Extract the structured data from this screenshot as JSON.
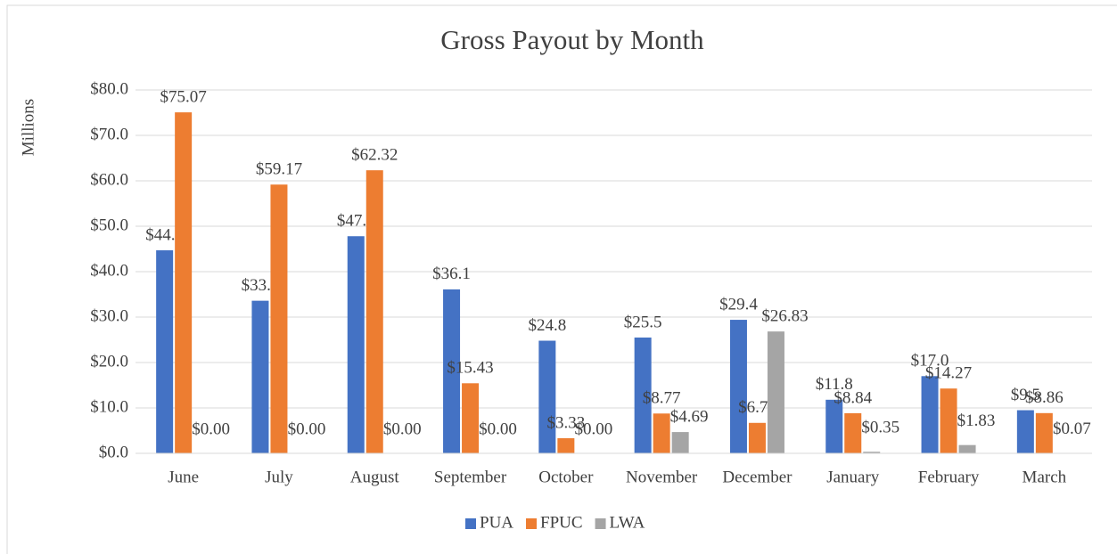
{
  "chart_data": {
    "type": "bar",
    "title": "Gross Payout by Month",
    "y_label": "Millions",
    "categories": [
      "June",
      "July",
      "August",
      "September",
      "October",
      "November",
      "December",
      "January",
      "February",
      "March"
    ],
    "series": [
      {
        "name": "PUA",
        "color": "#4472c4",
        "values": [
          44.7,
          33.6,
          47.8,
          36.1,
          24.8,
          25.5,
          29.4,
          11.8,
          17.0,
          9.5
        ],
        "value_labels": [
          "$44.7",
          "$33.6",
          "$47.8",
          "$36.1",
          "$24.8",
          "$25.5",
          "$29.4",
          "$11.8",
          "$17.0",
          "$9.5"
        ]
      },
      {
        "name": "FPUC",
        "color": "#ed7d31",
        "values": [
          75.07,
          59.17,
          62.32,
          15.43,
          3.33,
          8.77,
          6.71,
          8.84,
          14.27,
          8.86
        ],
        "value_labels": [
          "$75.07",
          "$59.17",
          "$62.32",
          "$15.43",
          "$3.33",
          "$8.77",
          "$6.71",
          "$8.84",
          "$14.27",
          "$8.86"
        ]
      },
      {
        "name": "LWA",
        "color": "#a5a5a5",
        "values": [
          0,
          0,
          0,
          0,
          0,
          4.69,
          26.83,
          0.35,
          1.83,
          0.07
        ],
        "value_labels": [
          "$0.00",
          "$0.00",
          "$0.00",
          "$0.00",
          "$0.00",
          "$4.69",
          "$26.83",
          "$0.35",
          "$1.83",
          "$0.07"
        ]
      }
    ],
    "ylim": [
      0,
      80
    ],
    "yticks": [
      {
        "value": 0,
        "label": "$0.0"
      },
      {
        "value": 10,
        "label": "$10.0"
      },
      {
        "value": 20,
        "label": "$20.0"
      },
      {
        "value": 30,
        "label": "$30.0"
      },
      {
        "value": 40,
        "label": "$40.0"
      },
      {
        "value": 50,
        "label": "$50.0"
      },
      {
        "value": 60,
        "label": "$60.0"
      },
      {
        "value": 70,
        "label": "$70.0"
      },
      {
        "value": 80,
        "label": "$80.0"
      }
    ],
    "grid": true,
    "legend": "bottom"
  }
}
